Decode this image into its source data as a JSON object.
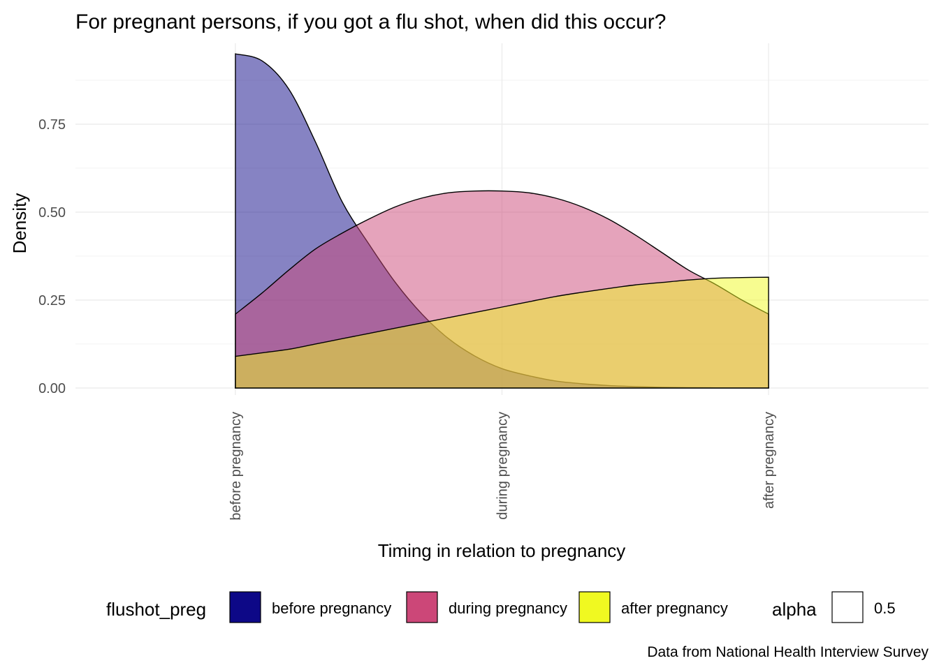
{
  "chart_data": {
    "type": "area",
    "subtype": "density",
    "title": "For pregnant persons, if you got a flu shot, when did this occur?",
    "xlabel": "Timing in relation to pregnancy",
    "ylabel": "Density",
    "caption": "Data from National Health Interview Survey",
    "categories": [
      "before pregnancy",
      "during pregnancy",
      "after pregnancy"
    ],
    "x_range": [
      1,
      3
    ],
    "ylim": [
      -0.02,
      0.98
    ],
    "y_ticks": [
      0.0,
      0.25,
      0.5,
      0.75
    ],
    "y_tick_labels": [
      "0.00",
      "0.25",
      "0.50",
      "0.75"
    ],
    "grid": true,
    "legend": {
      "position": "bottom",
      "fill_title": "flushot_preg",
      "alpha_title": "alpha",
      "alpha_value_label": "0.5"
    },
    "fill_alpha": 0.5,
    "series": [
      {
        "name": "before pregnancy",
        "color": "#0d0887",
        "x": [
          1.0,
          1.1,
          1.2,
          1.3,
          1.4,
          1.5,
          1.6,
          1.7,
          1.8,
          1.9,
          2.0,
          2.1,
          2.2,
          2.3,
          2.4,
          2.5,
          2.6,
          2.7,
          2.8,
          2.9,
          3.0
        ],
        "y": [
          0.95,
          0.93,
          0.85,
          0.7,
          0.53,
          0.41,
          0.3,
          0.21,
          0.14,
          0.09,
          0.055,
          0.035,
          0.02,
          0.012,
          0.007,
          0.004,
          0.002,
          0.001,
          0.0005,
          0.0002,
          0.0001
        ]
      },
      {
        "name": "during pregnancy",
        "color": "#cc4778",
        "x": [
          1.0,
          1.1,
          1.2,
          1.3,
          1.4,
          1.5,
          1.6,
          1.7,
          1.8,
          1.9,
          2.0,
          2.1,
          2.2,
          2.3,
          2.4,
          2.5,
          2.6,
          2.7,
          2.8,
          2.9,
          3.0
        ],
        "y": [
          0.21,
          0.27,
          0.335,
          0.395,
          0.44,
          0.48,
          0.515,
          0.54,
          0.555,
          0.56,
          0.56,
          0.555,
          0.54,
          0.515,
          0.48,
          0.435,
          0.385,
          0.335,
          0.295,
          0.25,
          0.21
        ]
      },
      {
        "name": "after pregnancy",
        "color": "#f0f921",
        "x": [
          1.0,
          1.1,
          1.2,
          1.3,
          1.4,
          1.5,
          1.6,
          1.7,
          1.8,
          1.9,
          2.0,
          2.1,
          2.2,
          2.3,
          2.4,
          2.5,
          2.6,
          2.7,
          2.8,
          2.9,
          3.0
        ],
        "y": [
          0.09,
          0.1,
          0.11,
          0.125,
          0.14,
          0.155,
          0.17,
          0.185,
          0.2,
          0.215,
          0.23,
          0.245,
          0.26,
          0.272,
          0.283,
          0.293,
          0.3,
          0.307,
          0.312,
          0.314,
          0.315
        ]
      }
    ]
  }
}
